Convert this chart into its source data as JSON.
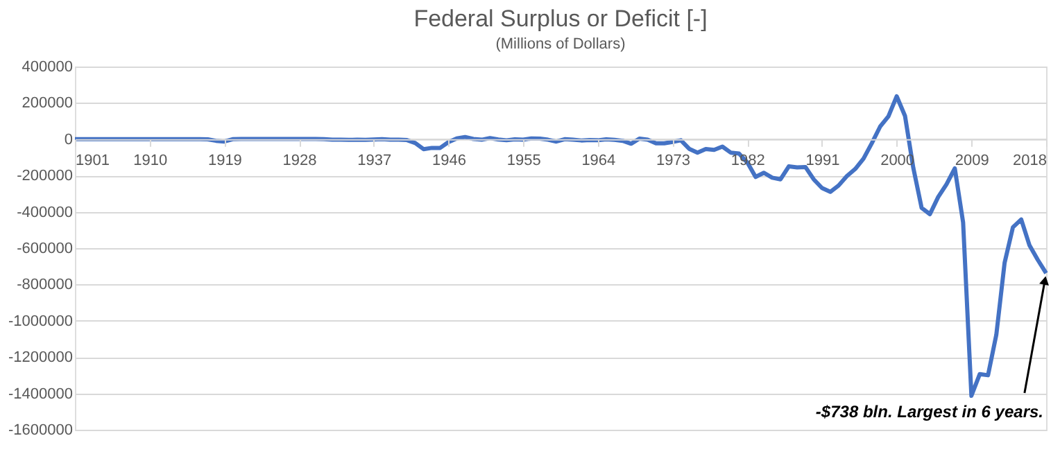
{
  "chart_data": {
    "type": "line",
    "title": "Federal Surplus or Deficit [-]",
    "subtitle": "(Millions of Dollars)",
    "x": [
      1901,
      1902,
      1903,
      1904,
      1905,
      1906,
      1907,
      1908,
      1909,
      1910,
      1911,
      1912,
      1913,
      1914,
      1915,
      1916,
      1917,
      1918,
      1919,
      1920,
      1921,
      1922,
      1923,
      1924,
      1925,
      1926,
      1927,
      1928,
      1929,
      1930,
      1931,
      1932,
      1933,
      1934,
      1935,
      1936,
      1937,
      1938,
      1939,
      1940,
      1941,
      1942,
      1943,
      1944,
      1945,
      1946,
      1947,
      1948,
      1949,
      1950,
      1951,
      1952,
      1953,
      1954,
      1955,
      1956,
      1957,
      1958,
      1959,
      1960,
      1961,
      1962,
      1963,
      1964,
      1965,
      1966,
      1967,
      1968,
      1969,
      1970,
      1971,
      1972,
      1973,
      1974,
      1975,
      1976,
      1977,
      1978,
      1979,
      1980,
      1981,
      1982,
      1983,
      1984,
      1985,
      1986,
      1987,
      1988,
      1989,
      1990,
      1991,
      1992,
      1993,
      1994,
      1995,
      1996,
      1997,
      1998,
      1999,
      2000,
      2001,
      2002,
      2003,
      2004,
      2005,
      2006,
      2007,
      2008,
      2009,
      2010,
      2011,
      2012,
      2013,
      2014,
      2015,
      2016,
      2017,
      2018
    ],
    "series": [
      {
        "color": "#4472c4",
        "values": [
          0,
          0,
          0,
          0,
          0,
          0,
          0,
          0,
          0,
          0,
          0,
          0,
          0,
          0,
          0,
          0,
          -1000,
          -9000,
          -13000,
          0,
          1000,
          1000,
          1000,
          1000,
          1000,
          1000,
          1000,
          1000,
          1000,
          1000,
          0,
          -3000,
          -3000,
          -4000,
          -3000,
          -4000,
          -2000,
          0,
          -3000,
          -3000,
          -5000,
          -21000,
          -55000,
          -48000,
          -48000,
          -16000,
          4000,
          12000,
          1000,
          -3000,
          6000,
          -2000,
          -6000,
          -1000,
          -3000,
          4000,
          3000,
          -3000,
          -13000,
          0,
          -3000,
          -7000,
          -5000,
          -6000,
          -1000,
          -4000,
          -9000,
          -25000,
          3000,
          -3000,
          -23000,
          -23000,
          -15000,
          -6000,
          -53000,
          -74000,
          -54000,
          -59000,
          -41000,
          -74000,
          -79000,
          -128000,
          -208000,
          -185000,
          -212000,
          -221000,
          -150000,
          -155000,
          -153000,
          -221000,
          -269000,
          -290000,
          -255000,
          -203000,
          -164000,
          -107000,
          -22000,
          69000,
          126000,
          236000,
          128000,
          -158000,
          -378000,
          -413000,
          -318000,
          -248000,
          -161000,
          -459000,
          -1413000,
          -1294000,
          -1300000,
          -1077000,
          -680000,
          -485000,
          -442000,
          -585000,
          -665000,
          -738000
        ]
      }
    ],
    "xlim": [
      1901,
      2018
    ],
    "xticks": [
      1901,
      1910,
      1919,
      1928,
      1937,
      1946,
      1955,
      1964,
      1973,
      1982,
      1991,
      2000,
      2009,
      2018
    ],
    "ylim": [
      -1600000,
      400000
    ],
    "yticks": [
      -1600000,
      -1400000,
      -1200000,
      -1000000,
      -800000,
      -600000,
      -400000,
      -200000,
      0,
      200000,
      400000
    ],
    "grid": "y",
    "line_style": "solid",
    "annotations": [
      {
        "text": "-$738 bln. Largest in 6 years.",
        "x": 2018,
        "y": -738000
      }
    ]
  }
}
